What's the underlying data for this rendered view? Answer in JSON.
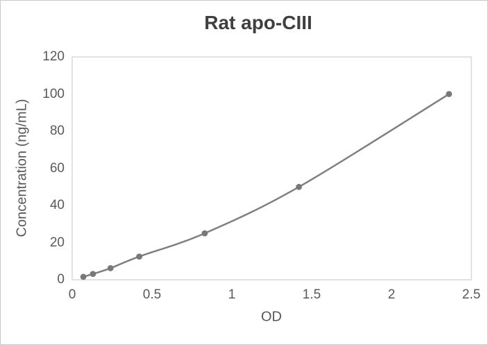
{
  "chart_data": {
    "type": "line",
    "title": "Rat apo-CIII",
    "xlabel": "OD",
    "ylabel": "Concentration (ng/mL)",
    "x": [
      0.07,
      0.13,
      0.24,
      0.42,
      0.83,
      1.42,
      2.36
    ],
    "y": [
      1.5625,
      3.125,
      6.25,
      12.5,
      25,
      50,
      100
    ],
    "xlim": [
      0,
      2.5
    ],
    "ylim": [
      0,
      120
    ],
    "x_ticks": [
      0,
      0.5,
      1,
      1.5,
      2,
      2.5
    ],
    "x_tick_labels": [
      "0",
      "0.5",
      "1",
      "1.5",
      "2",
      "2.5"
    ],
    "y_ticks": [
      0,
      20,
      40,
      60,
      80,
      100,
      120
    ],
    "y_tick_labels": [
      "0",
      "20",
      "40",
      "60",
      "80",
      "100",
      "120"
    ],
    "grid": "off",
    "legend": "none",
    "marker": "circle",
    "line_style": "smooth",
    "colors": {
      "line": "#7f7f7f",
      "marker": "#787878",
      "axis_text": "#595959",
      "title_text": "#3f3f3f",
      "plot_border": "#d9d9d9"
    }
  }
}
